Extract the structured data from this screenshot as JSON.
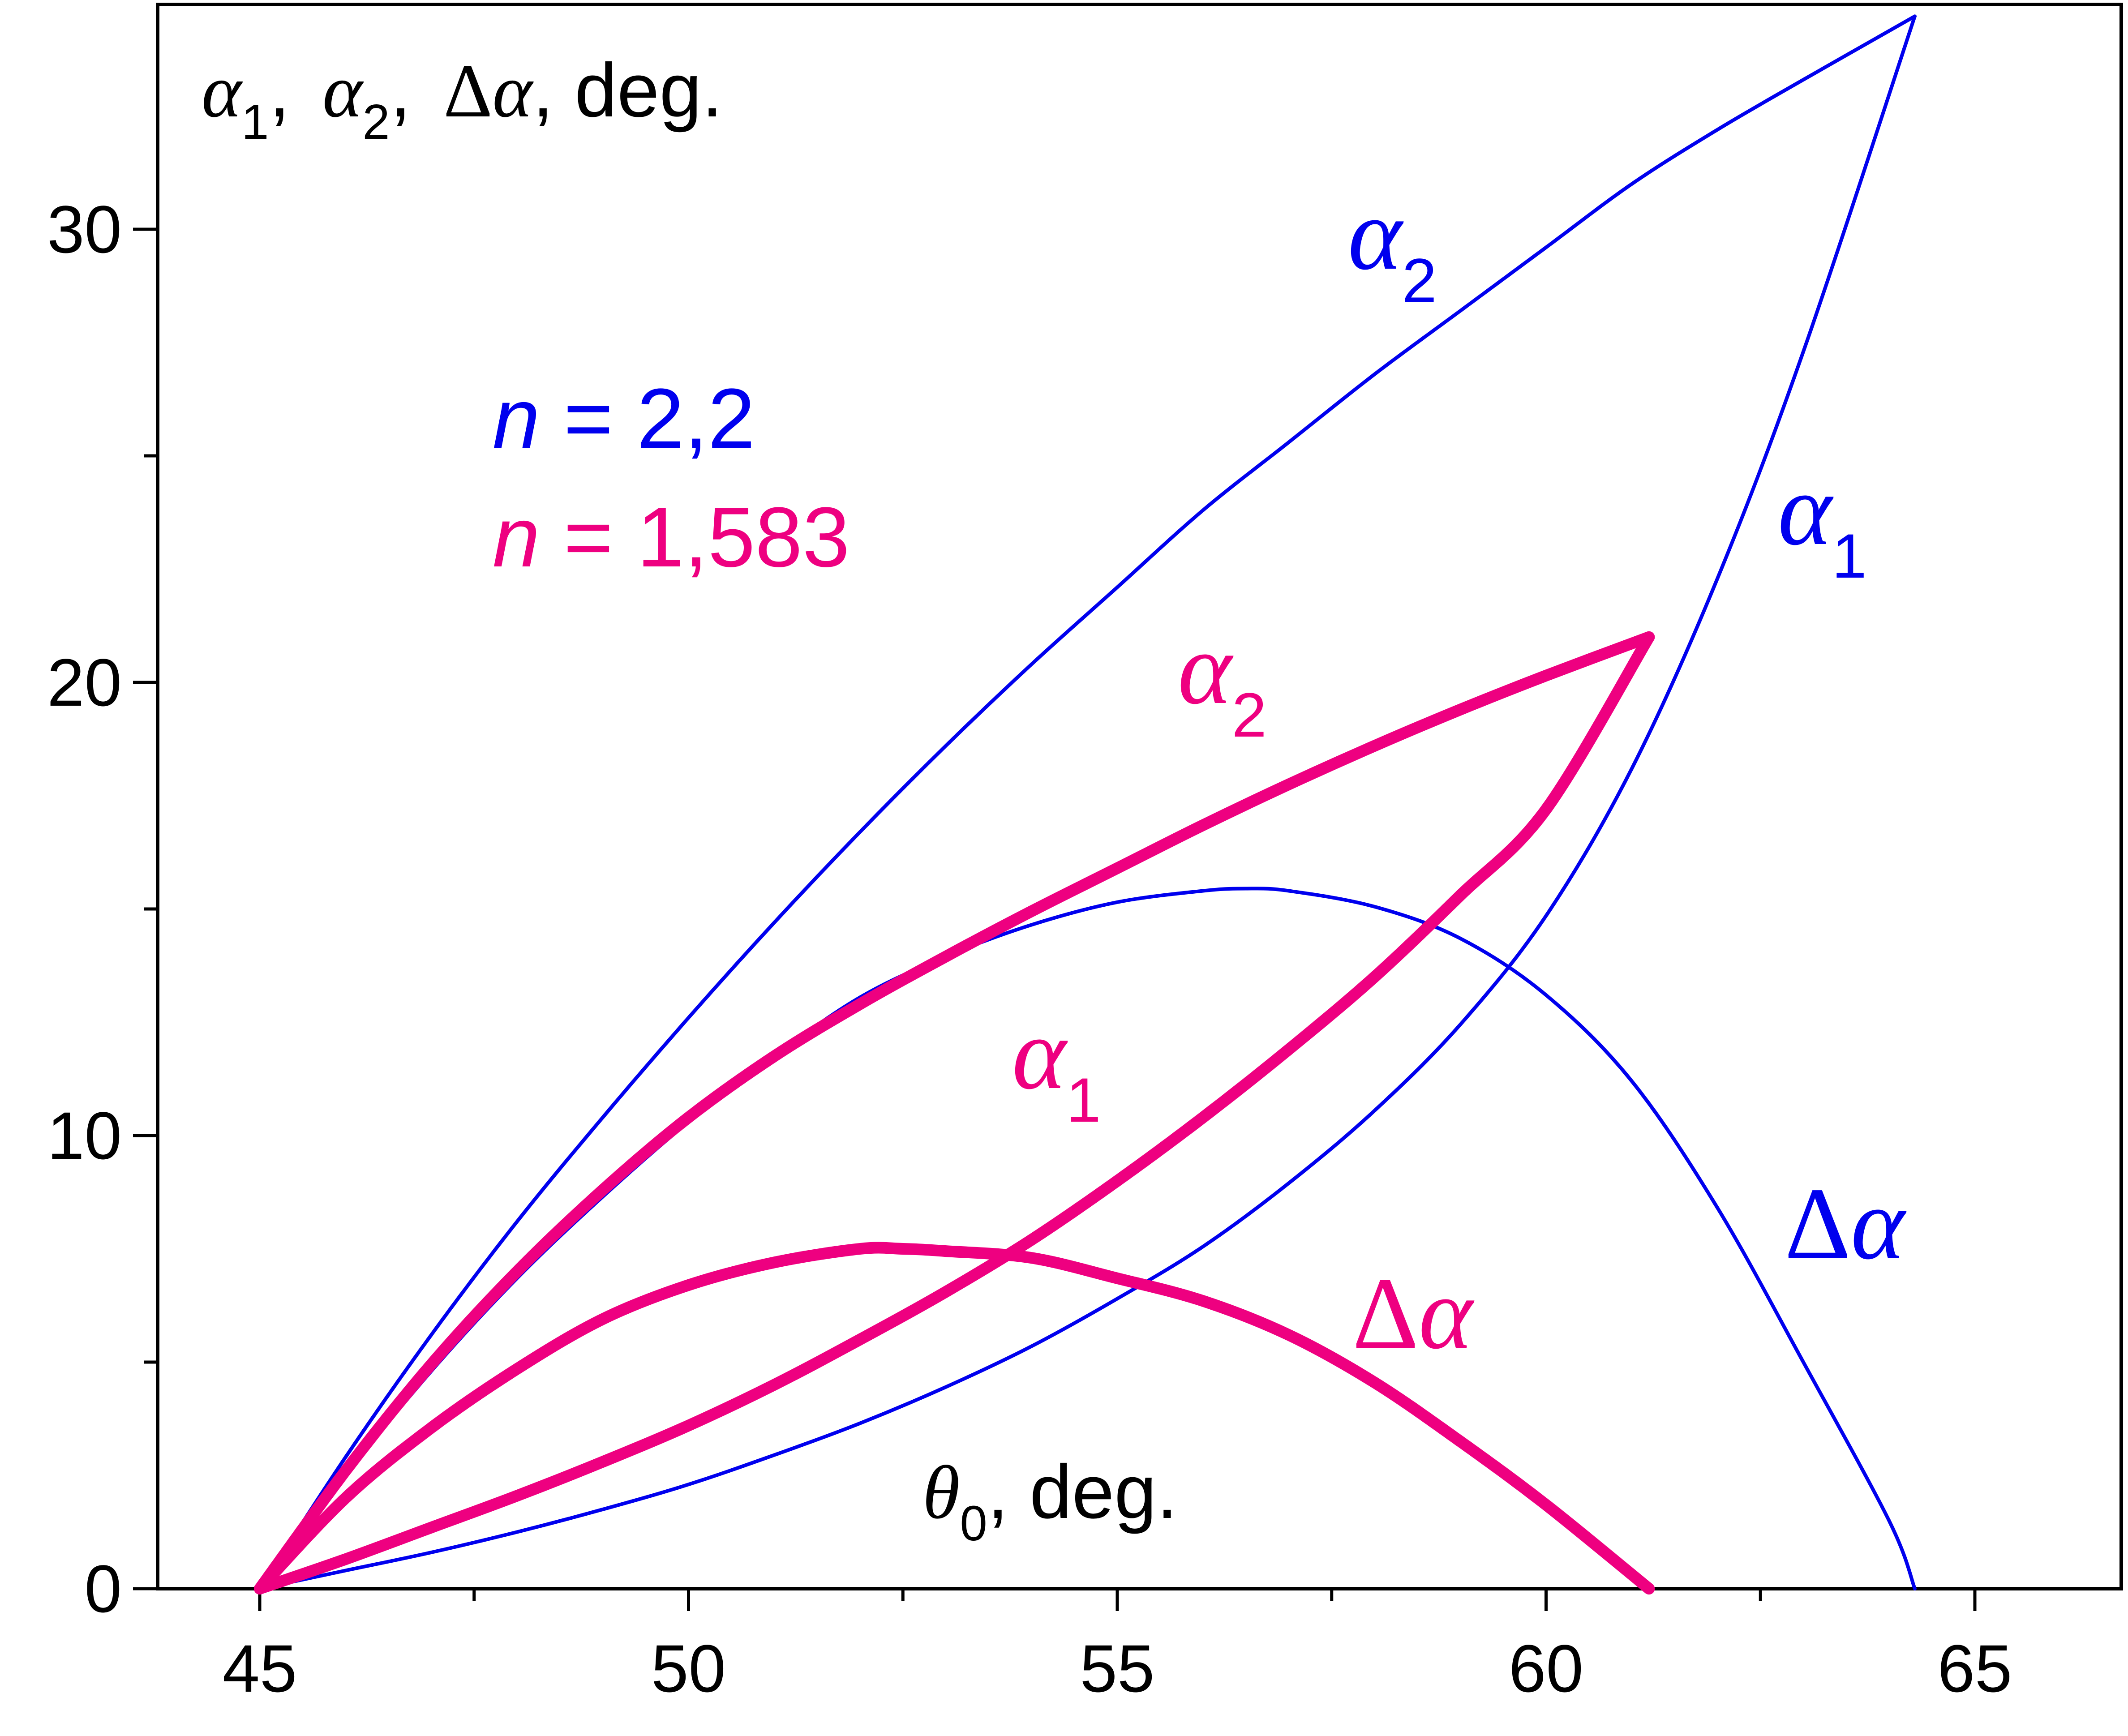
{
  "chart_data": {
    "type": "line",
    "xlim": [
      44,
      67
    ],
    "ylim": [
      0,
      35
    ],
    "x_ticks": [
      45,
      50,
      55,
      60,
      65
    ],
    "x_minor_ticks": [
      47.5,
      52.5,
      57.5,
      62.5
    ],
    "y_ticks": [
      0,
      10,
      20,
      30
    ],
    "y_minor_ticks": [
      5,
      15,
      25
    ],
    "colors": {
      "blue": "#0000ee",
      "magenta": "#ee0080",
      "axis": "#000000"
    },
    "y_axis_annotation": {
      "a1_sym": "α",
      "a1_sub": "1",
      "sep1": ",",
      "a2_sym": "α",
      "a2_sub": "2",
      "sep2": ",",
      "delta": "Δ",
      "da_sym": "α",
      "tail": ", deg."
    },
    "x_axis_annotation": {
      "sym": "θ",
      "sub": "0",
      "tail": ", deg."
    },
    "legend": [
      {
        "var": "n",
        "eq": " = 2,2",
        "color": "#0000ee"
      },
      {
        "var": "n",
        "eq": " = 1,583",
        "color": "#ee0080"
      }
    ],
    "curve_labels": {
      "blue_a2": {
        "sym": "α",
        "sub": "2"
      },
      "blue_a1": {
        "sym": "α",
        "sub": "1"
      },
      "blue_da": {
        "delta": "Δ",
        "sym": "α"
      },
      "mag_a2": {
        "sym": "α",
        "sub": "2"
      },
      "mag_a1": {
        "sym": "α",
        "sub": "1"
      },
      "mag_da": {
        "delta": "Δ",
        "sym": "α"
      }
    },
    "series": [
      {
        "id": "blue-alpha2",
        "color": "#0000ee",
        "width": 8,
        "x": [
          45,
          46,
          47,
          48,
          49,
          50,
          51,
          52,
          53,
          54,
          55,
          56,
          57,
          58,
          59,
          60,
          61,
          62,
          63,
          64.3
        ],
        "y": [
          0,
          2.9,
          5.6,
          8.1,
          10.4,
          12.6,
          14.7,
          16.7,
          18.6,
          20.4,
          22.1,
          23.8,
          25.3,
          26.8,
          28.2,
          29.6,
          31.0,
          32.2,
          33.3,
          34.7
        ]
      },
      {
        "id": "blue-alpha1",
        "color": "#0000ee",
        "width": 8,
        "x": [
          45,
          46,
          47,
          48,
          49,
          50,
          51,
          52,
          53,
          54,
          55,
          56,
          57,
          58,
          59,
          60,
          61,
          62,
          63,
          64.3
        ],
        "y": [
          0,
          0.4,
          0.8,
          1.25,
          1.75,
          2.3,
          2.95,
          3.65,
          4.45,
          5.35,
          6.4,
          7.55,
          8.95,
          10.55,
          12.45,
          14.85,
          18.1,
          22.3,
          27.3,
          34.7
        ]
      },
      {
        "id": "blue-delta",
        "color": "#0000ee",
        "width": 8,
        "x": [
          45,
          46,
          47,
          48,
          49,
          50,
          51,
          52,
          53,
          54,
          55,
          56,
          56.5,
          57,
          58,
          59,
          60,
          61,
          62,
          63,
          64,
          64.3
        ],
        "y": [
          0,
          2.5,
          4.8,
          6.85,
          8.65,
          10.3,
          11.75,
          13.05,
          13.95,
          14.65,
          15.15,
          15.4,
          15.45,
          15.4,
          15.05,
          14.35,
          13.1,
          11.2,
          8.4,
          5.0,
          1.5,
          0
        ]
      },
      {
        "id": "magenta-alpha2",
        "color": "#ee0080",
        "width": 26,
        "x": [
          45,
          46,
          47,
          48,
          49,
          50,
          51,
          52,
          53,
          54,
          55,
          56,
          57,
          58,
          59,
          60,
          61.2
        ],
        "y": [
          0,
          2.6,
          4.95,
          7.0,
          8.8,
          10.4,
          11.75,
          12.9,
          13.95,
          14.95,
          15.9,
          16.85,
          17.75,
          18.6,
          19.4,
          20.15,
          21.0
        ]
      },
      {
        "id": "magenta-alpha1",
        "color": "#ee0080",
        "width": 26,
        "x": [
          45,
          46,
          47,
          48,
          49,
          50,
          51,
          52,
          53,
          54,
          55,
          56,
          57,
          58,
          59,
          60,
          61.2
        ],
        "y": [
          0,
          0.65,
          1.35,
          2.05,
          2.8,
          3.6,
          4.5,
          5.5,
          6.55,
          7.7,
          9.0,
          10.4,
          11.9,
          13.5,
          15.3,
          17.2,
          21.0
        ]
      },
      {
        "id": "magenta-delta",
        "color": "#ee0080",
        "width": 26,
        "x": [
          45,
          46,
          47,
          48,
          49,
          50,
          51,
          52,
          52.5,
          53,
          54,
          55,
          56,
          57,
          58,
          59,
          60,
          61.2
        ],
        "y": [
          0,
          2.0,
          3.55,
          4.85,
          5.95,
          6.7,
          7.2,
          7.5,
          7.5,
          7.45,
          7.3,
          6.85,
          6.35,
          5.6,
          4.55,
          3.25,
          1.85,
          0
        ]
      }
    ]
  }
}
